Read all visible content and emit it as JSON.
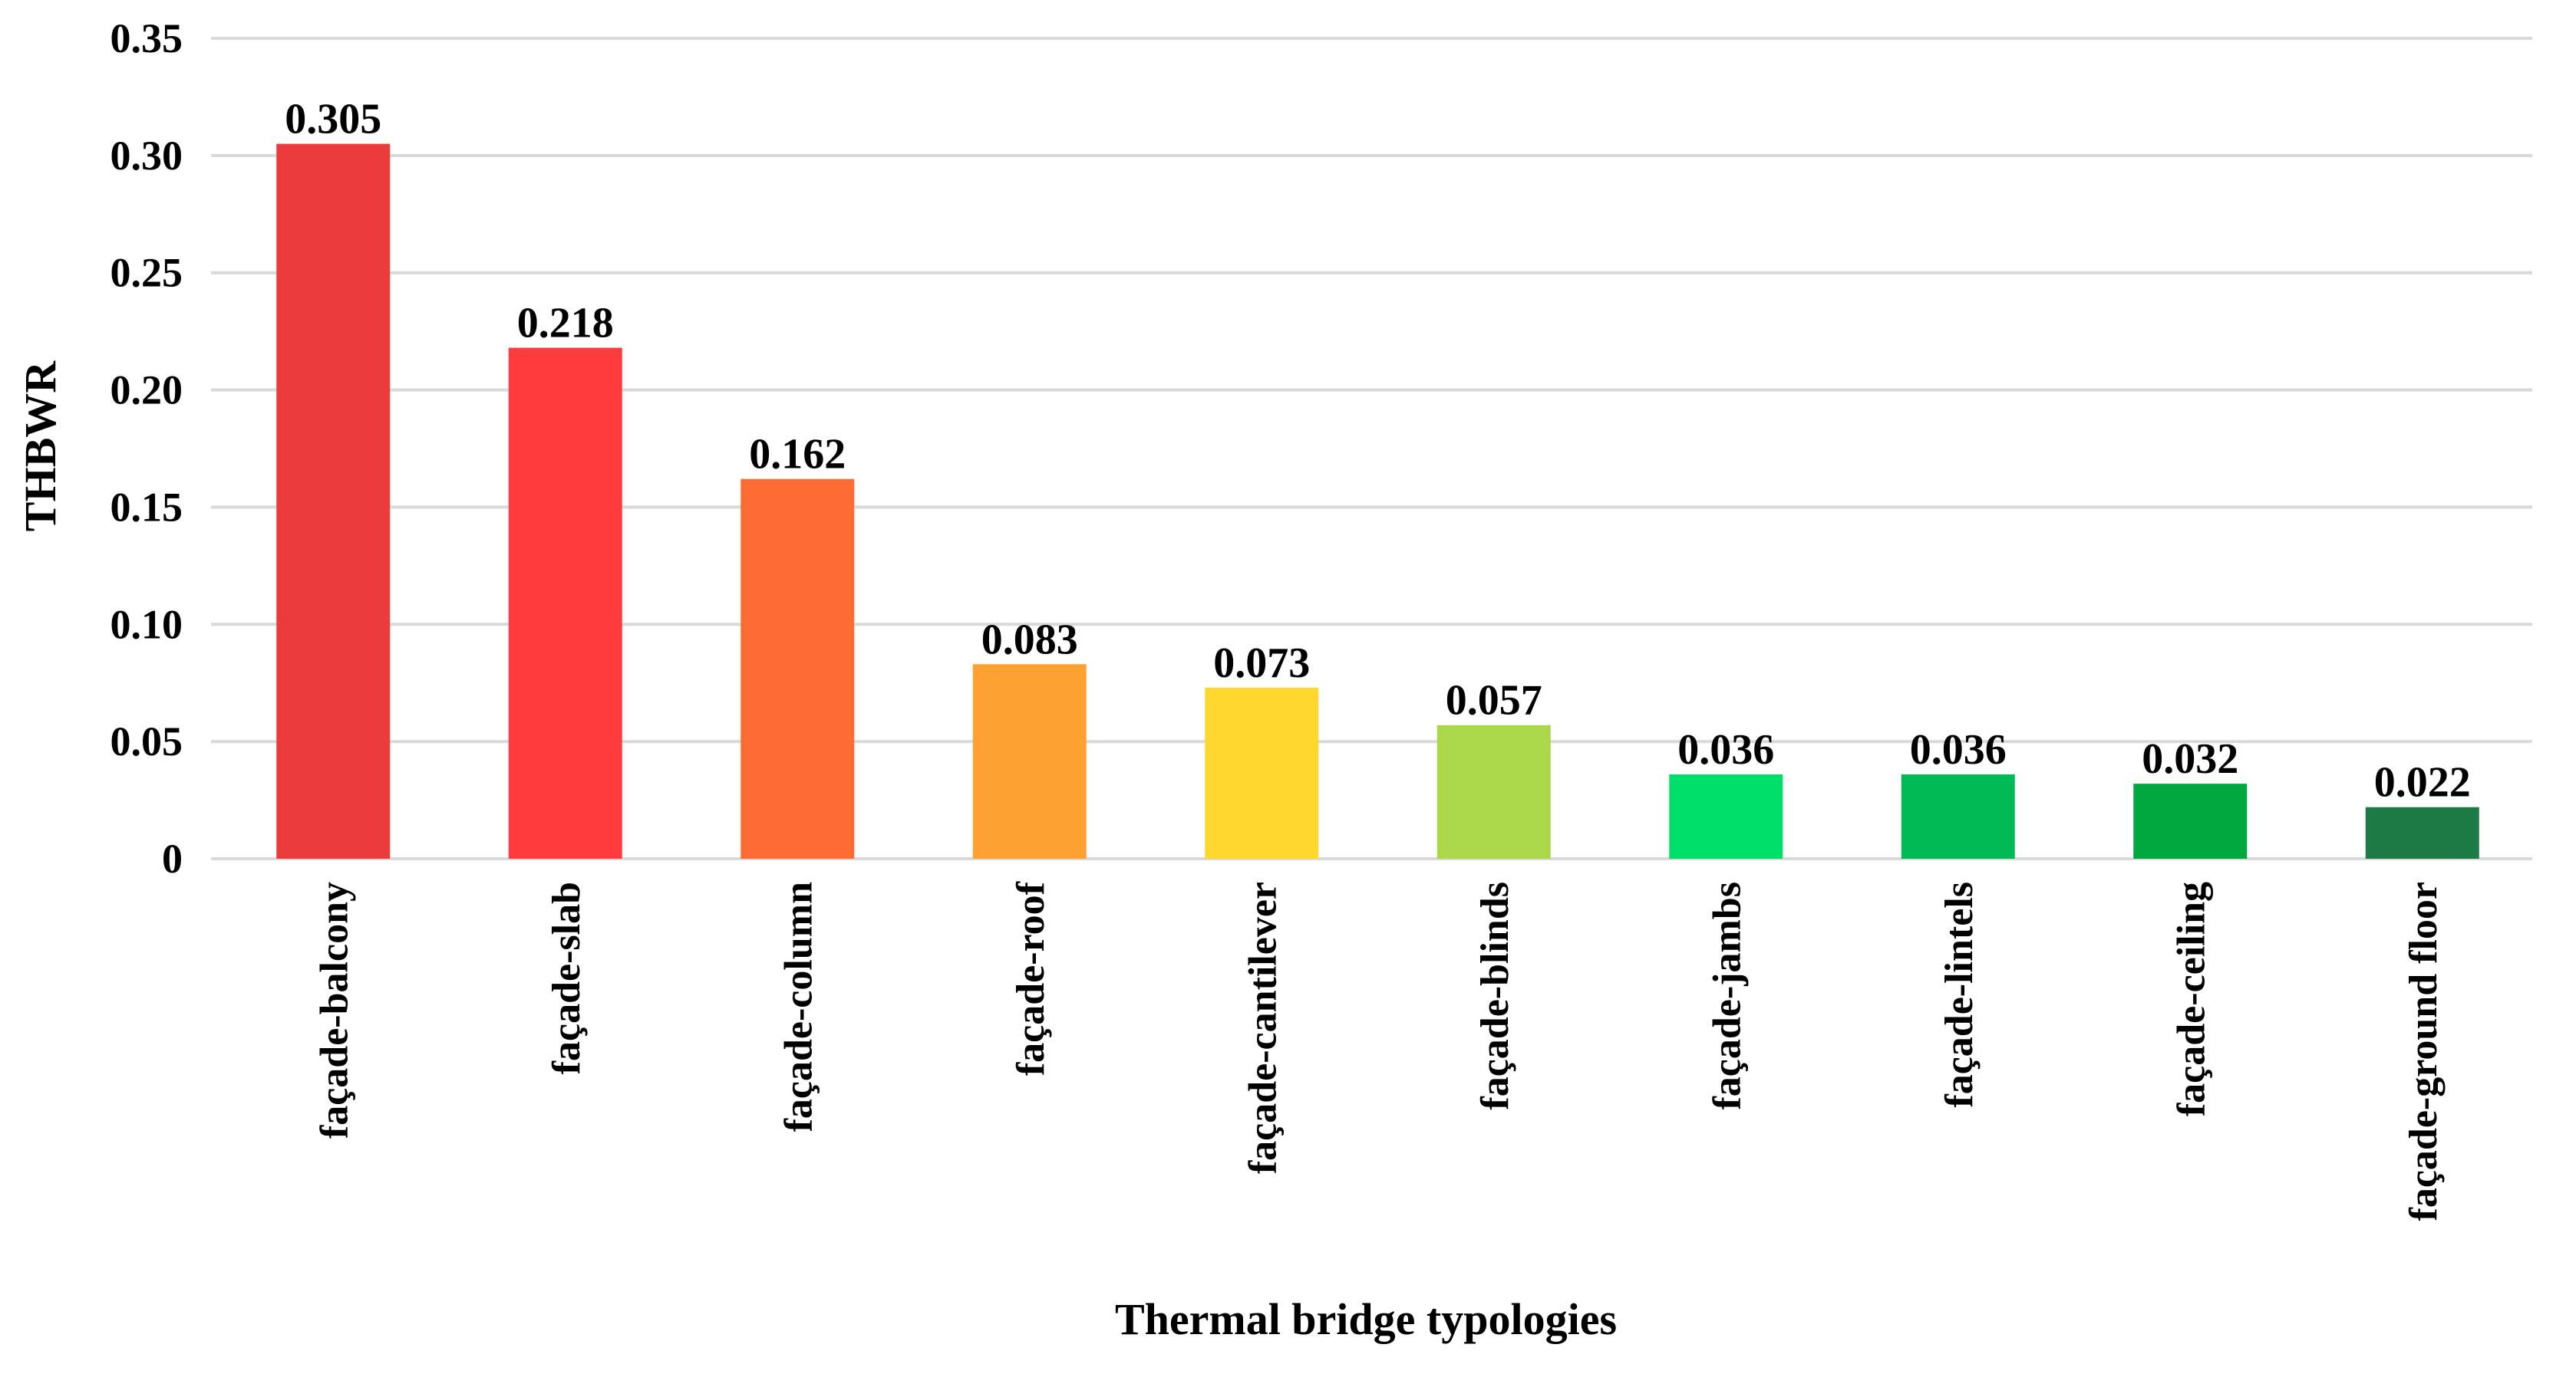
{
  "chart_data": {
    "type": "bar",
    "title": "",
    "xlabel": "Thermal bridge typologies",
    "ylabel": "THBWR",
    "ylim": [
      0,
      0.35
    ],
    "yticks": [
      {
        "value": 0,
        "label": "0"
      },
      {
        "value": 0.05,
        "label": "0.05"
      },
      {
        "value": 0.1,
        "label": "0.10"
      },
      {
        "value": 0.15,
        "label": "0.15"
      },
      {
        "value": 0.2,
        "label": "0.20"
      },
      {
        "value": 0.25,
        "label": "0.25"
      },
      {
        "value": 0.3,
        "label": "0.30"
      },
      {
        "value": 0.35,
        "label": "0.35"
      }
    ],
    "grid": true,
    "legend": "none",
    "categories": [
      "façade-balcony",
      "façade-slab",
      "façade-column",
      "façade-roof",
      "façade-cantilever",
      "façade-blinds",
      "façade-jambs",
      "façade-lintels",
      "façade-ceiling",
      "façade-ground floor"
    ],
    "values": [
      0.305,
      0.218,
      0.162,
      0.083,
      0.073,
      0.057,
      0.036,
      0.036,
      0.032,
      0.022
    ],
    "value_labels": [
      "0.305",
      "0.218",
      "0.162",
      "0.083",
      "0.073",
      "0.057",
      "0.036",
      "0.036",
      "0.032",
      "0.022"
    ],
    "colors": [
      "#ec3b3b",
      "#ff3b3d",
      "#ff6b35",
      "#ffa032",
      "#ffd72e",
      "#abd84b",
      "#00df69",
      "#00bb55",
      "#00a73f",
      "#1e7a44"
    ]
  }
}
